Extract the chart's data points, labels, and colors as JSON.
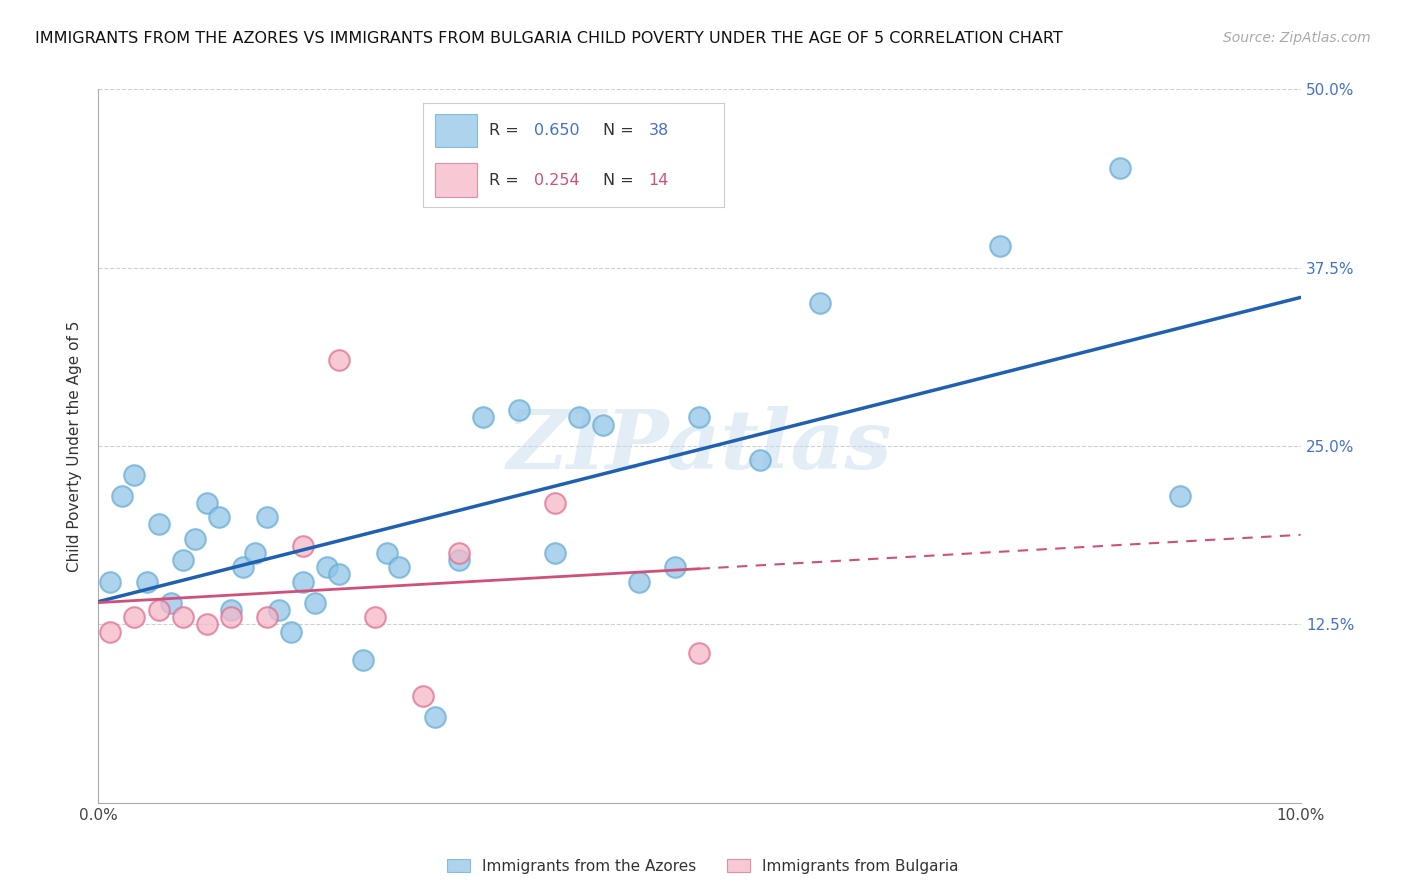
{
  "title": "IMMIGRANTS FROM THE AZORES VS IMMIGRANTS FROM BULGARIA CHILD POVERTY UNDER THE AGE OF 5 CORRELATION CHART",
  "source": "Source: ZipAtlas.com",
  "ylabel": "Child Poverty Under the Age of 5",
  "x_min": 0.0,
  "x_max": 0.1,
  "y_min": 0.0,
  "y_max": 0.5,
  "y_ticks": [
    0.0,
    0.125,
    0.25,
    0.375,
    0.5
  ],
  "y_tick_labels": [
    "",
    "12.5%",
    "25.0%",
    "37.5%",
    "50.0%"
  ],
  "x_ticks": [
    0.0,
    0.02,
    0.04,
    0.06,
    0.08,
    0.1
  ],
  "x_tick_labels": [
    "0.0%",
    "",
    "",
    "",
    "",
    "10.0%"
  ],
  "azores_R": 0.65,
  "azores_N": 38,
  "bulgaria_R": 0.254,
  "bulgaria_N": 14,
  "legend_labels": [
    "Immigrants from the Azores",
    "Immigrants from Bulgaria"
  ],
  "azores_color": "#92c5e8",
  "azores_edge_color": "#6aaed6",
  "bulgaria_color": "#f4b8c8",
  "bulgaria_edge_color": "#e07090",
  "azores_line_color": "#2060b0",
  "bulgaria_line_color": "#d0507a",
  "watermark": "ZIPatlas",
  "azores_x": [
    0.001,
    0.002,
    0.003,
    0.004,
    0.005,
    0.006,
    0.007,
    0.008,
    0.009,
    0.01,
    0.011,
    0.012,
    0.013,
    0.014,
    0.015,
    0.016,
    0.017,
    0.018,
    0.019,
    0.02,
    0.022,
    0.024,
    0.025,
    0.028,
    0.03,
    0.032,
    0.035,
    0.038,
    0.04,
    0.042,
    0.045,
    0.048,
    0.05,
    0.055,
    0.06,
    0.075,
    0.085,
    0.09
  ],
  "azores_y": [
    0.155,
    0.215,
    0.23,
    0.155,
    0.195,
    0.14,
    0.17,
    0.185,
    0.21,
    0.2,
    0.135,
    0.165,
    0.175,
    0.2,
    0.135,
    0.12,
    0.155,
    0.14,
    0.165,
    0.16,
    0.1,
    0.175,
    0.165,
    0.06,
    0.17,
    0.27,
    0.275,
    0.175,
    0.27,
    0.265,
    0.155,
    0.165,
    0.27,
    0.24,
    0.35,
    0.39,
    0.445,
    0.215
  ],
  "bulgaria_x": [
    0.001,
    0.003,
    0.005,
    0.007,
    0.009,
    0.011,
    0.014,
    0.017,
    0.02,
    0.023,
    0.027,
    0.03,
    0.038,
    0.05
  ],
  "bulgaria_y": [
    0.12,
    0.13,
    0.135,
    0.13,
    0.125,
    0.13,
    0.13,
    0.18,
    0.31,
    0.13,
    0.075,
    0.175,
    0.21,
    0.105
  ]
}
